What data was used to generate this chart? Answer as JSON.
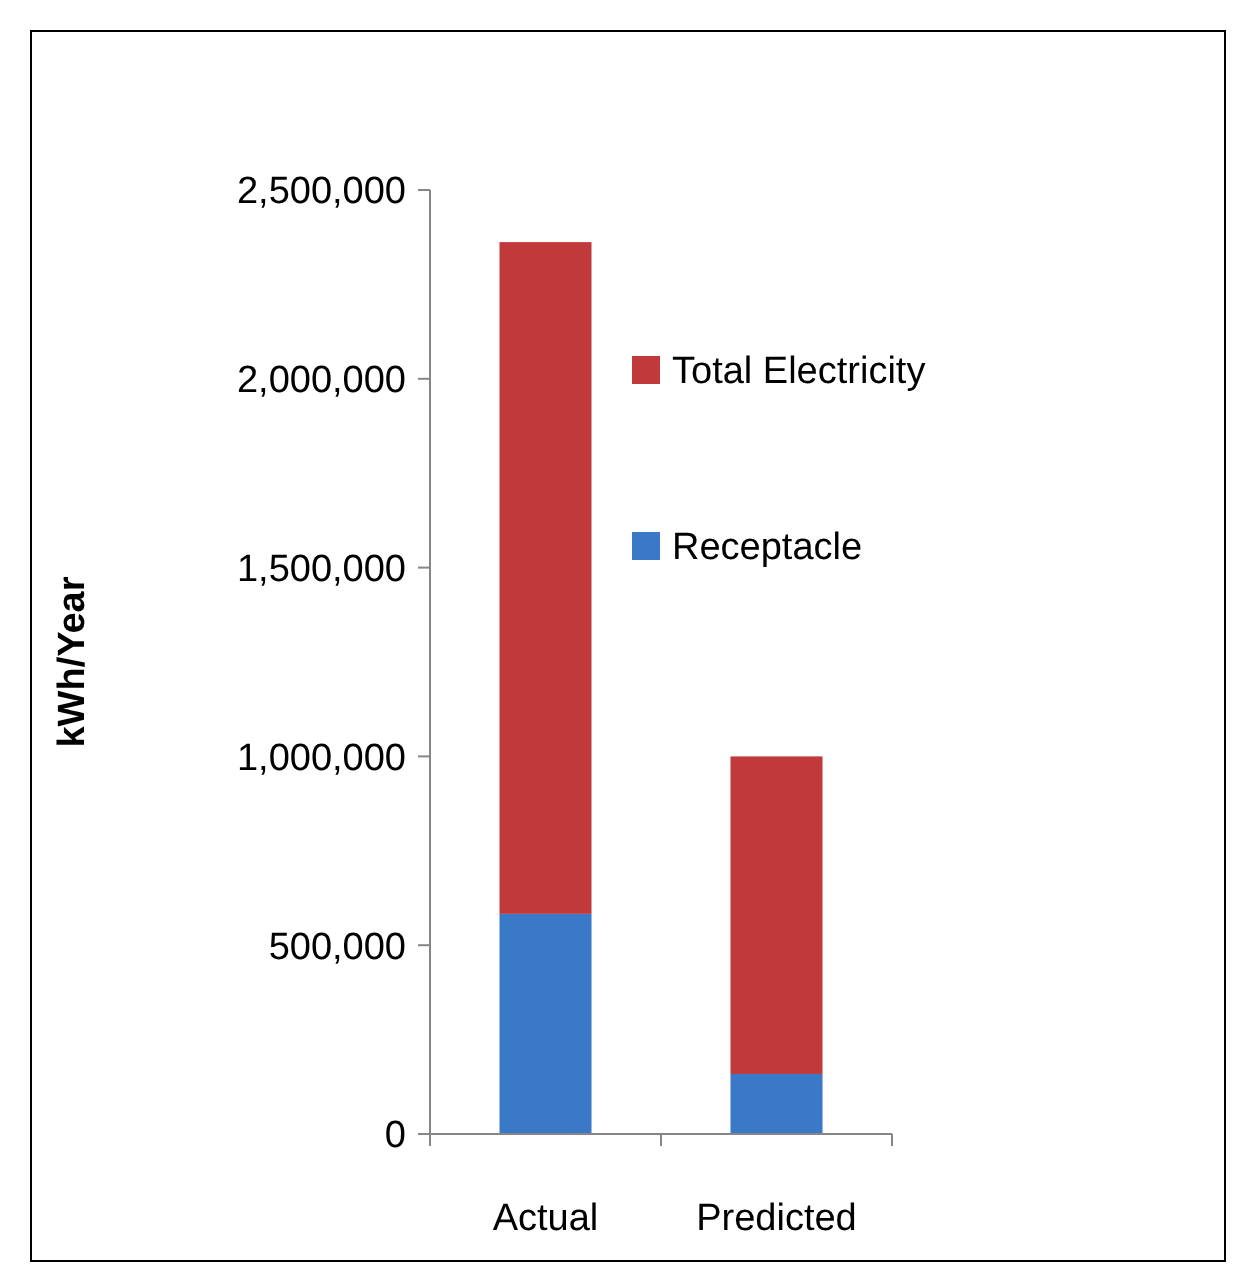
{
  "chart_data": {
    "type": "bar",
    "stacked": true,
    "ylabel": "kWh/Year",
    "categories": [
      "Actual",
      "Predicted"
    ],
    "series": [
      {
        "name": "Receptacle",
        "color": "#3a78c8",
        "values": [
          583000,
          159000
        ]
      },
      {
        "name": "Total Electricity",
        "color": "#c0393b",
        "values": [
          1779000,
          841000
        ]
      }
    ],
    "ylim": [
      0,
      2500000
    ],
    "yticks": [
      {
        "value": 0,
        "label": "0"
      },
      {
        "value": 500000,
        "label": "500,000"
      },
      {
        "value": 1000000,
        "label": "1,000,000"
      },
      {
        "value": 1500000,
        "label": "1,500,000"
      },
      {
        "value": 2000000,
        "label": "2,000,000"
      },
      {
        "value": 2500000,
        "label": "2,500,000"
      }
    ],
    "legend": "right",
    "grid": false
  }
}
